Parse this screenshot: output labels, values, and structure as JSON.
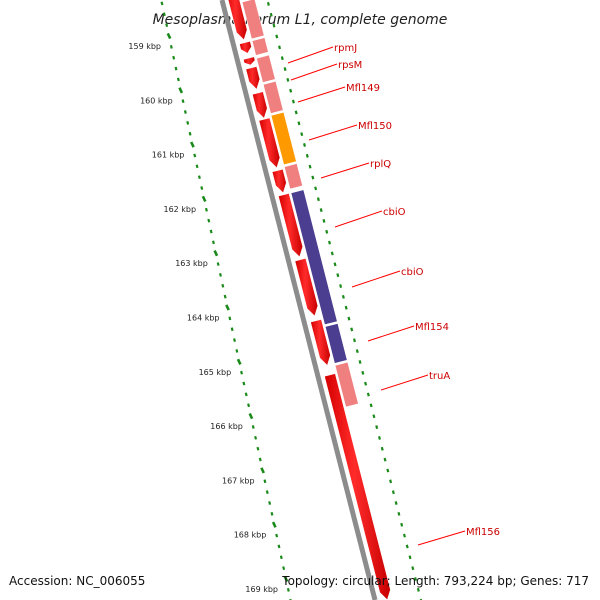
{
  "title": "Mesoplasma florum L1, complete genome",
  "ticks": [
    {
      "label": "159 kbp"
    },
    {
      "label": "160 kbp"
    },
    {
      "label": "161 kbp"
    },
    {
      "label": "162 kbp"
    },
    {
      "label": "163 kbp"
    },
    {
      "label": "164 kbp"
    },
    {
      "label": "165 kbp"
    },
    {
      "label": "166 kbp"
    },
    {
      "label": "167 kbp"
    },
    {
      "label": "168 kbp"
    },
    {
      "label": "169 kbp"
    }
  ],
  "gene_labels": [
    {
      "name": "rpmJ"
    },
    {
      "name": "rpsM"
    },
    {
      "name": "Mfl149"
    },
    {
      "name": "Mfl150"
    },
    {
      "name": "rplQ"
    },
    {
      "name": "cbiO"
    },
    {
      "name": "cbiO"
    },
    {
      "name": "Mfl154"
    },
    {
      "name": "truA"
    },
    {
      "name": "Mfl156"
    }
  ],
  "footer": {
    "accession": "Accession: NC_006055",
    "stats": "Topology: circular; Length: 793,224 bp; Genes: 717"
  },
  "colors": {
    "cds": "#ff0000",
    "cog_pink": "#f08080",
    "cog_orange": "#ff9900",
    "cog_purple": "#4b3d8f",
    "cog_blue": "#29b6f6",
    "backbone": "#888888",
    "ticks": "#1a8a1a",
    "label_line": "#ff0000",
    "label_text": "#cc0000"
  }
}
